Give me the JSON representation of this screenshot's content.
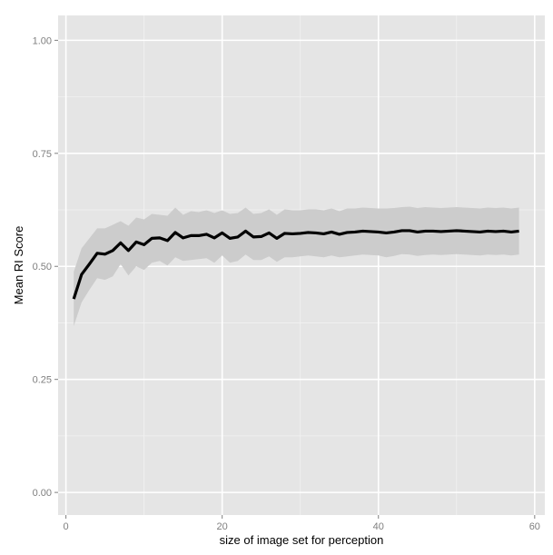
{
  "chart_data": {
    "type": "line",
    "title": "",
    "xlabel": "size of image set for perception",
    "ylabel": "Mean RI Score",
    "xlim": [
      -1,
      61.3
    ],
    "ylim": [
      -0.05,
      1.055
    ],
    "x_ticks": [
      0,
      20,
      40,
      60
    ],
    "x_tick_labels": [
      "0",
      "20",
      "40",
      "60"
    ],
    "y_ticks": [
      0,
      0.25,
      0.5,
      0.75,
      1.0
    ],
    "y_tick_labels": [
      "0.00",
      "0.25",
      "0.50",
      "0.75",
      "1.00"
    ],
    "grid": true,
    "legend": "none",
    "series": [
      {
        "x": [
          1,
          2,
          3,
          4,
          5,
          6,
          7,
          8,
          9,
          10,
          11,
          12,
          13,
          14,
          15,
          16,
          17,
          18,
          19,
          20,
          21,
          22,
          23,
          24,
          25,
          26,
          27,
          28,
          29,
          30,
          31,
          32,
          33,
          34,
          35,
          36,
          37,
          38,
          39,
          40,
          41,
          42,
          43,
          44,
          45,
          46,
          47,
          48,
          49,
          50,
          51,
          52,
          53,
          54,
          55,
          56,
          57,
          58
        ],
        "y": [
          0.428,
          0.482,
          0.505,
          0.529,
          0.527,
          0.535,
          0.552,
          0.535,
          0.554,
          0.548,
          0.562,
          0.563,
          0.557,
          0.575,
          0.563,
          0.568,
          0.568,
          0.571,
          0.563,
          0.574,
          0.562,
          0.565,
          0.578,
          0.565,
          0.566,
          0.574,
          0.562,
          0.573,
          0.572,
          0.573,
          0.575,
          0.574,
          0.572,
          0.576,
          0.571,
          0.575,
          0.576,
          0.578,
          0.577,
          0.576,
          0.574,
          0.576,
          0.579,
          0.579,
          0.576,
          0.578,
          0.578,
          0.577,
          0.578,
          0.579,
          0.578,
          0.577,
          0.576,
          0.578,
          0.577,
          0.578,
          0.576,
          0.578
        ],
        "lower": [
          0.368,
          0.42,
          0.448,
          0.474,
          0.47,
          0.478,
          0.505,
          0.48,
          0.5,
          0.492,
          0.508,
          0.512,
          0.502,
          0.52,
          0.512,
          0.514,
          0.516,
          0.518,
          0.508,
          0.524,
          0.508,
          0.512,
          0.526,
          0.514,
          0.514,
          0.522,
          0.51,
          0.52,
          0.52,
          0.522,
          0.524,
          0.522,
          0.52,
          0.524,
          0.52,
          0.522,
          0.524,
          0.526,
          0.525,
          0.524,
          0.52,
          0.523,
          0.527,
          0.526,
          0.523,
          0.525,
          0.526,
          0.525,
          0.526,
          0.527,
          0.526,
          0.525,
          0.524,
          0.526,
          0.525,
          0.526,
          0.524,
          0.526
        ],
        "upper": [
          0.488,
          0.54,
          0.562,
          0.584,
          0.584,
          0.592,
          0.6,
          0.59,
          0.608,
          0.604,
          0.616,
          0.614,
          0.612,
          0.63,
          0.614,
          0.622,
          0.62,
          0.624,
          0.618,
          0.624,
          0.616,
          0.618,
          0.63,
          0.616,
          0.618,
          0.626,
          0.614,
          0.626,
          0.624,
          0.624,
          0.626,
          0.626,
          0.624,
          0.628,
          0.622,
          0.628,
          0.628,
          0.63,
          0.629,
          0.628,
          0.628,
          0.629,
          0.631,
          0.632,
          0.629,
          0.631,
          0.63,
          0.629,
          0.63,
          0.631,
          0.63,
          0.629,
          0.628,
          0.63,
          0.629,
          0.63,
          0.628,
          0.63
        ]
      }
    ],
    "colors": {
      "panel_background": "#e5e5e5",
      "grid_major": "#ffffff",
      "grid_minor": "#f2f2f2",
      "ribbon": "#cccccc",
      "line": "#000000",
      "tick_label": "#7f7f7f"
    }
  }
}
